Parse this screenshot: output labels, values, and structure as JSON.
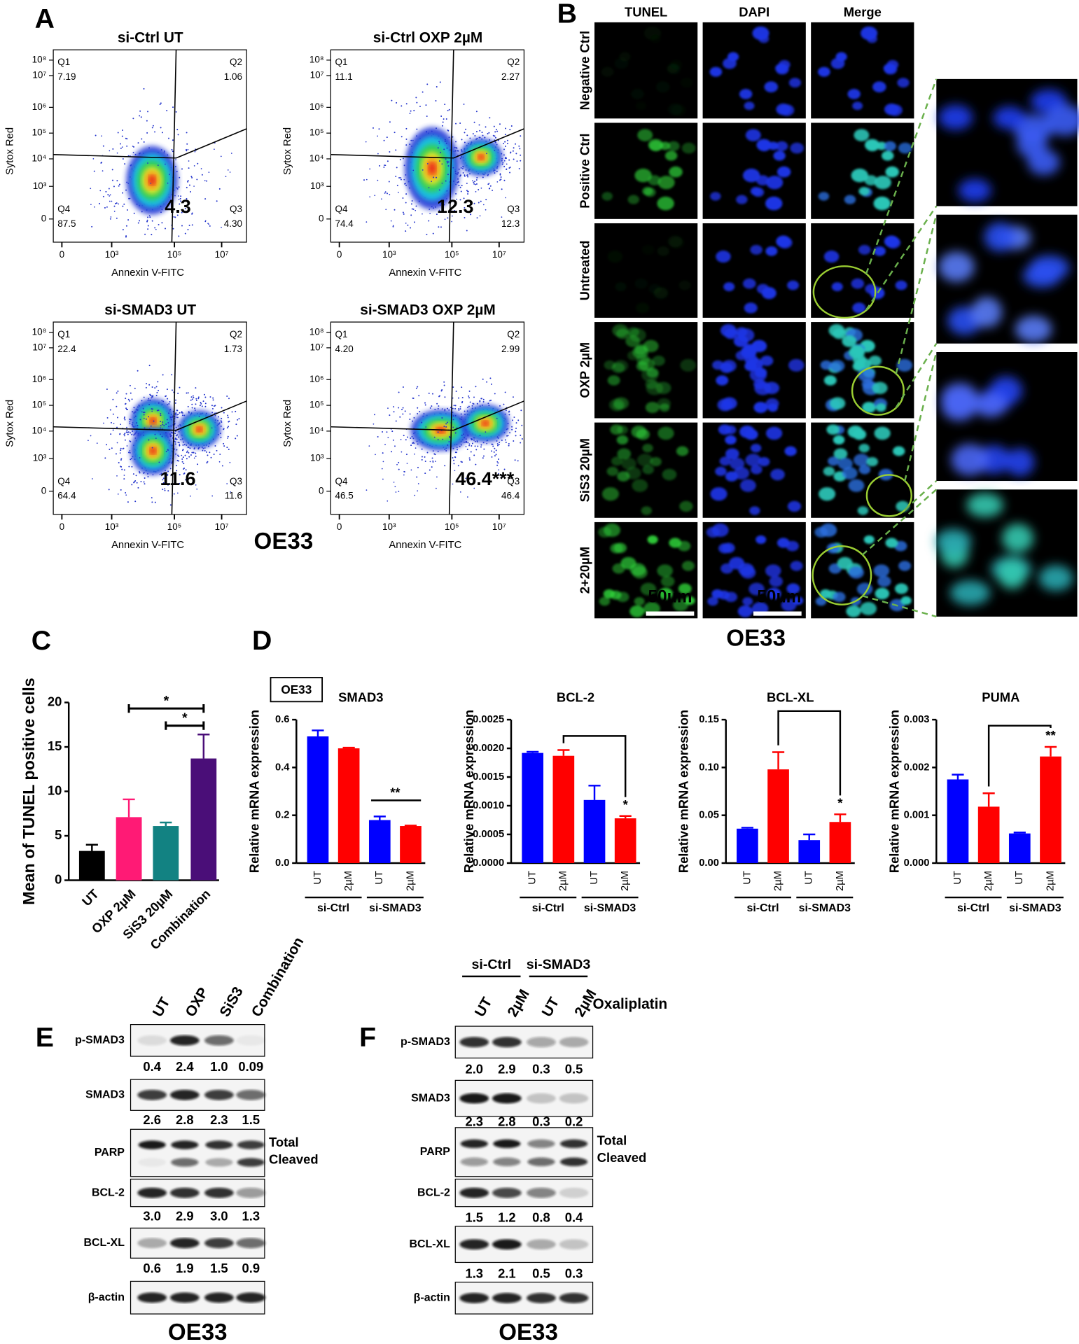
{
  "flow": {
    "label": "A",
    "cell_line": "OE33",
    "x_axis": "Annexin V-FITC",
    "y_axis": "Sytox Red",
    "xticks": [
      "0",
      "10³",
      "10⁵",
      "10⁷"
    ],
    "yticks": [
      "10⁸",
      "10⁷",
      "10⁶",
      "10⁵",
      "10⁴",
      "10³",
      "0"
    ],
    "plots": [
      {
        "title": "si-Ctrl UT",
        "quadrants": [
          {
            "name": "Q1",
            "value": "7.19"
          },
          {
            "name": "Q2",
            "value": "1.06"
          },
          {
            "name": "Q3",
            "value": "4.30"
          },
          {
            "name": "Q4",
            "value": "87.5"
          }
        ],
        "highlight": "4.3"
      },
      {
        "title": "si-Ctrl OXP 2µM",
        "quadrants": [
          {
            "name": "Q1",
            "value": "11.1"
          },
          {
            "name": "Q2",
            "value": "2.27"
          },
          {
            "name": "Q3",
            "value": "12.3"
          },
          {
            "name": "Q4",
            "value": "74.4"
          }
        ],
        "highlight": "12.3"
      },
      {
        "title": "si-SMAD3 UT",
        "quadrants": [
          {
            "name": "Q1",
            "value": "22.4"
          },
          {
            "name": "Q2",
            "value": "1.73"
          },
          {
            "name": "Q3",
            "value": "11.6"
          },
          {
            "name": "Q4",
            "value": "64.4"
          }
        ],
        "highlight": "11.6"
      },
      {
        "title": "si-SMAD3 OXP 2µM",
        "quadrants": [
          {
            "name": "Q1",
            "value": "4.20"
          },
          {
            "name": "Q2",
            "value": "2.99"
          },
          {
            "name": "Q3",
            "value": "46.4"
          },
          {
            "name": "Q4",
            "value": "46.5"
          }
        ],
        "highlight": "46.4***"
      }
    ]
  },
  "microscopy": {
    "label": "B",
    "cell_line": "OE33",
    "columns": [
      "TUNEL",
      "DAPI",
      "Merge"
    ],
    "rows": [
      "Negative Ctrl",
      "Positive Ctrl",
      "Untreated",
      "OXP 2µM",
      "SiS3 20µM",
      "2+20µM"
    ],
    "scale_bar": "50µm"
  },
  "chart_data": [
    {
      "type": "bar",
      "panel_label": "C",
      "ylabel": "Mean of TUNEL positive cells",
      "categories": [
        "UT",
        "OXP 2µM",
        "SiS3 20µM",
        "Combination"
      ],
      "values": [
        3.3,
        7.1,
        6.1,
        13.7
      ],
      "errors": [
        0.7,
        2.0,
        0.4,
        2.7
      ],
      "colors": [
        "#000000",
        "#ff1a75",
        "#128282",
        "#4a0e78"
      ],
      "ylim": [
        0,
        20
      ],
      "yticks": [
        0,
        5,
        10,
        15,
        20
      ],
      "annotations": [
        "*",
        "*"
      ]
    },
    {
      "type": "bar",
      "panel_label": "D",
      "tag": "OE33",
      "title": "SMAD3",
      "ylabel": "Relative mRNA expression",
      "categories": [
        "UT",
        "2µM",
        "UT",
        "2µM"
      ],
      "groups": [
        "si-Ctrl",
        "si-SMAD3"
      ],
      "values": [
        0.53,
        0.48,
        0.18,
        0.155
      ],
      "errors": [
        0.025,
        0.003,
        0.015,
        0.002
      ],
      "colors": [
        "#0000ff",
        "#ff0000",
        "#0000ff",
        "#ff0000"
      ],
      "ylim": [
        0,
        0.6
      ],
      "yticks": [
        {
          "value": 0,
          "label": "0.0"
        },
        0.2,
        0.4,
        0.6
      ],
      "annotations": [
        "**"
      ]
    },
    {
      "type": "bar",
      "title": "BCL-2",
      "ylabel": "Relative mRNA expression",
      "categories": [
        "UT",
        "2µM",
        "UT",
        "2µM"
      ],
      "groups": [
        "si-Ctrl",
        "si-SMAD3"
      ],
      "values": [
        0.00192,
        0.00187,
        0.0011,
        0.00078
      ],
      "errors": [
        2e-05,
        0.0001,
        0.00025,
        4e-05
      ],
      "colors": [
        "#0000ff",
        "#ff0000",
        "#0000ff",
        "#ff0000"
      ],
      "ylim": [
        0,
        0.0025
      ],
      "yticks": [
        {
          "value": 0,
          "label": "0.0000"
        },
        0.0005,
        {
          "value": 0.001,
          "label": "0.0010"
        },
        0.0015,
        {
          "value": 0.002,
          "label": "0.0020"
        },
        0.0025
      ],
      "annotations": [
        "*"
      ]
    },
    {
      "type": "bar",
      "title": "BCL-XL",
      "ylabel": "Relative mRNA expression",
      "categories": [
        "UT",
        "2µM",
        "UT",
        "2µM"
      ],
      "groups": [
        "si-Ctrl",
        "si-SMAD3"
      ],
      "values": [
        0.036,
        0.098,
        0.024,
        0.043
      ],
      "errors": [
        0.001,
        0.018,
        0.006,
        0.008
      ],
      "colors": [
        "#0000ff",
        "#ff0000",
        "#0000ff",
        "#ff0000"
      ],
      "ylim": [
        0,
        0.15
      ],
      "yticks": [
        {
          "value": 0,
          "label": "0.00"
        },
        0.05,
        {
          "value": 0.1,
          "label": "0.10"
        },
        0.15
      ],
      "annotations": [
        "*"
      ]
    },
    {
      "type": "bar",
      "title": "PUMA",
      "ylabel": "Relative mRNA expression",
      "categories": [
        "UT",
        "2µM",
        "UT",
        "2µM"
      ],
      "groups": [
        "si-Ctrl",
        "si-SMAD3"
      ],
      "values": [
        0.00175,
        0.00118,
        0.00062,
        0.00223
      ],
      "errors": [
        0.0001,
        0.00028,
        2e-05,
        0.0002
      ],
      "colors": [
        "#0000ff",
        "#ff0000",
        "#0000ff",
        "#ff0000"
      ],
      "ylim": [
        0,
        0.003
      ],
      "yticks": [
        {
          "value": 0,
          "label": "0.000"
        },
        0.001,
        0.002,
        0.003
      ],
      "annotations": [
        "**"
      ]
    }
  ],
  "blots": [
    {
      "label": "E",
      "cell_line": "OE33",
      "lanes": [
        "UT",
        "OXP",
        "SiS3",
        "Combination"
      ],
      "rows": [
        {
          "name": "p-SMAD3",
          "quant": [
            "0.4",
            "2.4",
            "1.0",
            "0.09"
          ]
        },
        {
          "name": "SMAD3",
          "quant": [
            "2.6",
            "2.8",
            "2.3",
            "1.5"
          ]
        },
        {
          "name": "PARP",
          "bands": [
            "Total",
            "Cleaved"
          ]
        },
        {
          "name": "BCL-2",
          "quant": [
            "3.0",
            "2.9",
            "3.0",
            "1.3"
          ]
        },
        {
          "name": "BCL-XL",
          "quant": [
            "0.6",
            "1.9",
            "1.5",
            "0.9"
          ]
        },
        {
          "name": "β-actin"
        }
      ]
    },
    {
      "label": "F",
      "cell_line": "OE33",
      "groups": [
        "si-Ctrl",
        "si-SMAD3"
      ],
      "lanes": [
        "UT",
        "2µM",
        "UT",
        "2µM"
      ],
      "treatment": "Oxaliplatin",
      "rows": [
        {
          "name": "p-SMAD3",
          "quant": [
            "2.0",
            "2.9",
            "0.3",
            "0.5"
          ]
        },
        {
          "name": "SMAD3",
          "quant": [
            "2.3",
            "2.8",
            "0.3",
            "0.2"
          ]
        },
        {
          "name": "PARP",
          "bands": [
            "Total",
            "Cleaved"
          ]
        },
        {
          "name": "BCL-2",
          "quant": [
            "1.5",
            "1.2",
            "0.8",
            "0.4"
          ]
        },
        {
          "name": "BCL-XL",
          "quant": [
            "1.3",
            "2.1",
            "0.5",
            "0.3"
          ]
        },
        {
          "name": "β-actin"
        }
      ]
    }
  ]
}
